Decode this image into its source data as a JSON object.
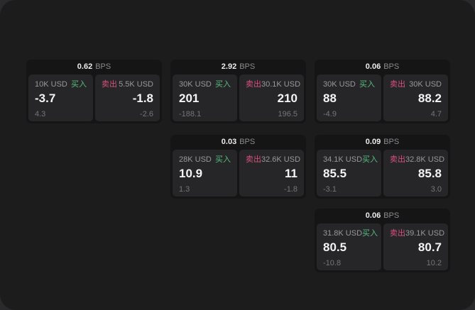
{
  "labels": {
    "bps": "BPS",
    "buy": "买入",
    "sell": "卖出"
  },
  "colors": {
    "buy": "#57bd7e",
    "sell": "#d8517a",
    "panel_background": "#1c1c1d",
    "card_background": "#151516",
    "tile_background": "#262628"
  },
  "cards": [
    {
      "bps": "0.62",
      "buy": {
        "amount": "10K USD",
        "price": "-3.7",
        "delta": "4.3"
      },
      "sell": {
        "amount": "5.5K USD",
        "price": "-1.8",
        "delta": "-2.6"
      }
    },
    {
      "bps": "2.92",
      "buy": {
        "amount": "30K USD",
        "price": "201",
        "delta": "-188.1"
      },
      "sell": {
        "amount": "30.1K USD",
        "price": "210",
        "delta": "196.5"
      }
    },
    {
      "bps": "0.06",
      "buy": {
        "amount": "30K USD",
        "price": "88",
        "delta": "-4.9"
      },
      "sell": {
        "amount": "30K USD",
        "price": "88.2",
        "delta": "4.7"
      }
    },
    {
      "bps": "0.03",
      "buy": {
        "amount": "28K USD",
        "price": "10.9",
        "delta": "1.3"
      },
      "sell": {
        "amount": "32.6K USD",
        "price": "11",
        "delta": "-1.8"
      }
    },
    {
      "bps": "0.09",
      "buy": {
        "amount": "34.1K USD",
        "price": "85.5",
        "delta": "-3.1"
      },
      "sell": {
        "amount": "32.8K USD",
        "price": "85.8",
        "delta": "3.0"
      }
    },
    {
      "bps": "0.06",
      "buy": {
        "amount": "31.8K USD",
        "price": "80.5",
        "delta": "-10.8"
      },
      "sell": {
        "amount": "39.1K USD",
        "price": "80.7",
        "delta": "10.2"
      }
    }
  ]
}
